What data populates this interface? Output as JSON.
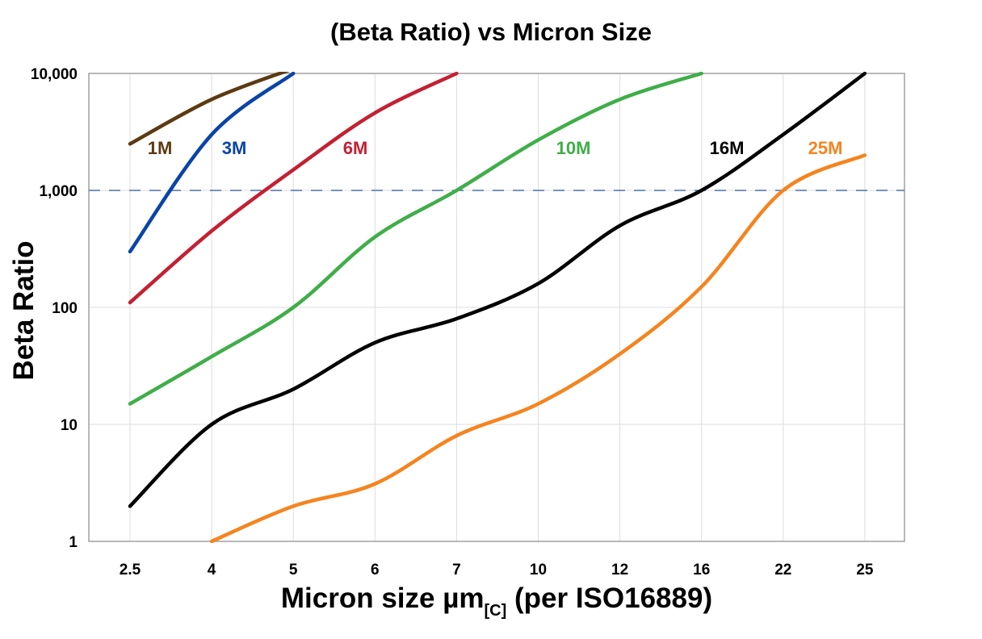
{
  "chart_data": {
    "type": "line",
    "title": "(Beta Ratio) vs Micron Size",
    "xlabel": {
      "main": "Micron size µm",
      "subscript": "[C]",
      "suffix": " (per ISO16889)"
    },
    "ylabel": "Beta Ratio",
    "y_scale": "log",
    "ylim": [
      1,
      10000
    ],
    "y_ticks": [
      1,
      10,
      100,
      1000,
      10000
    ],
    "y_tick_labels": [
      "1",
      "10",
      "100",
      "1,000",
      "10,000"
    ],
    "categories": [
      "2.5",
      "4",
      "5",
      "6",
      "7",
      "10",
      "12",
      "16",
      "22",
      "25"
    ],
    "grid": true,
    "reference_line": {
      "y": 1000,
      "style": "dashed",
      "color": "#4a6fb0"
    },
    "series": [
      {
        "name": "1M",
        "color": "#5c3a12",
        "values": [
          2500,
          6000,
          11000,
          null,
          null,
          null,
          null,
          null,
          null,
          null
        ]
      },
      {
        "name": "3M",
        "color": "#0a44a8",
        "values": [
          300,
          3000,
          10000,
          null,
          null,
          null,
          null,
          null,
          null,
          null
        ]
      },
      {
        "name": "6M",
        "color": "#c42033",
        "values": [
          110,
          450,
          1500,
          4600,
          10000,
          null,
          null,
          null,
          null,
          null
        ]
      },
      {
        "name": "10M",
        "color": "#3fae49",
        "values": [
          15,
          38,
          100,
          400,
          1000,
          2700,
          6000,
          10000,
          null,
          null
        ]
      },
      {
        "name": "16M",
        "color": "#000000",
        "values": [
          2,
          10,
          20,
          50,
          80,
          160,
          500,
          1000,
          3000,
          10000
        ]
      },
      {
        "name": "25M",
        "color": "#f5841f",
        "values": [
          null,
          1,
          2,
          3.1,
          8,
          15,
          40,
          150,
          1000,
          2000
        ]
      }
    ]
  }
}
